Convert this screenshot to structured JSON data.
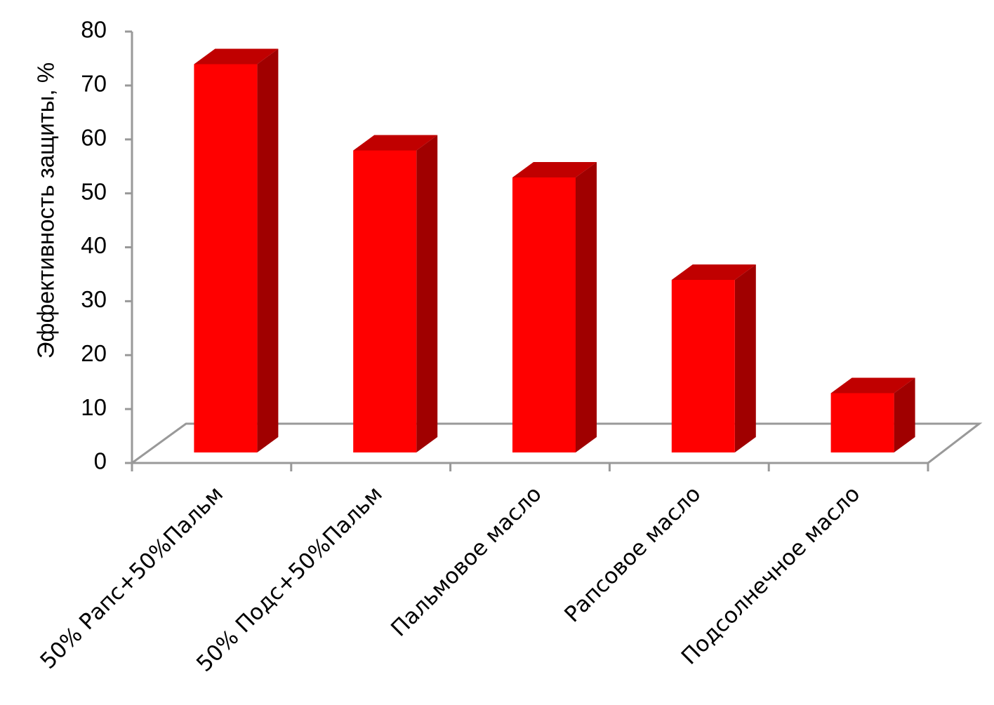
{
  "chart_data": {
    "type": "bar3d",
    "y_label": "Эффективность защиты, %",
    "categories": [
      "50% Рапс+50%Пальм",
      "50% Подс+50%Пальм",
      "Пальмовое масло",
      "Рапсовое масло",
      "Подсолнечное масло"
    ],
    "values": [
      72,
      56,
      51,
      32,
      11
    ],
    "color": "#ff0000",
    "ylim": [
      0,
      80
    ],
    "yticks": [
      0,
      10,
      20,
      30,
      40,
      50,
      60,
      70,
      80
    ]
  }
}
